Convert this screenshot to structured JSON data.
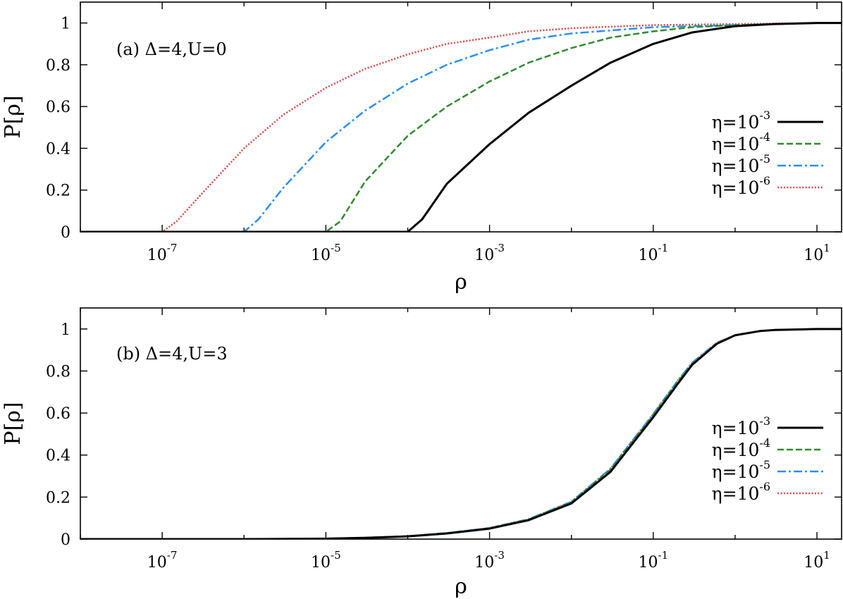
{
  "chart_data": [
    {
      "type": "line",
      "annotation": "(a) Δ=4,U=0",
      "xlabel": "ρ",
      "ylabel": "P[ρ]",
      "xscale": "log",
      "xlim": [
        1e-08,
        20
      ],
      "ylim": [
        0,
        1.1
      ],
      "x_ticks": [
        {
          "base": "10",
          "exp": "-7"
        },
        {
          "base": "10",
          "exp": "-5"
        },
        {
          "base": "10",
          "exp": "-3"
        },
        {
          "base": "10",
          "exp": "-1"
        },
        {
          "base": "10",
          "exp": "1"
        }
      ],
      "y_ticks": [
        "0",
        "0.2",
        "0.4",
        "0.6",
        "0.8",
        "1"
      ],
      "legend_position": "right",
      "series": [
        {
          "name": "η=10",
          "name_exp": "-3",
          "color": "#000000",
          "dash": "solid",
          "x": [
            1e-08,
            0.0001,
            0.00015,
            0.0003,
            0.001,
            0.003,
            0.01,
            0.03,
            0.1,
            0.3,
            1,
            3,
            10,
            20
          ],
          "y": [
            0,
            0,
            0.06,
            0.23,
            0.42,
            0.57,
            0.7,
            0.81,
            0.9,
            0.955,
            0.985,
            0.995,
            1.0,
            1.0
          ]
        },
        {
          "name": "η=10",
          "name_exp": "-4",
          "color": "#2e8b2e",
          "dash": "dashed",
          "x": [
            1e-08,
            1e-05,
            1.5e-05,
            3e-05,
            0.0001,
            0.0003,
            0.001,
            0.003,
            0.01,
            0.03,
            0.1,
            0.3,
            1,
            10,
            20
          ],
          "y": [
            0,
            0,
            0.05,
            0.24,
            0.46,
            0.6,
            0.72,
            0.81,
            0.88,
            0.93,
            0.96,
            0.98,
            0.99,
            1.0,
            1.0
          ]
        },
        {
          "name": "η=10",
          "name_exp": "-5",
          "color": "#2b8fef",
          "dash": "dashdot",
          "x": [
            1e-08,
            1e-06,
            1.5e-06,
            3e-06,
            1e-05,
            3e-05,
            0.0001,
            0.0003,
            0.001,
            0.003,
            0.01,
            0.1,
            1,
            10,
            20
          ],
          "y": [
            0,
            0,
            0.06,
            0.21,
            0.43,
            0.58,
            0.71,
            0.8,
            0.87,
            0.92,
            0.95,
            0.98,
            0.99,
            1.0,
            1.0
          ]
        },
        {
          "name": "η=10",
          "name_exp": "-6",
          "color": "#d9534f",
          "dash": "dotted",
          "x": [
            1e-08,
            1e-07,
            1.5e-07,
            3e-07,
            1e-06,
            3e-06,
            1e-05,
            3e-05,
            0.0001,
            0.0003,
            0.001,
            0.003,
            0.01,
            0.1,
            1,
            10,
            20
          ],
          "y": [
            0,
            0,
            0.05,
            0.18,
            0.4,
            0.56,
            0.69,
            0.78,
            0.85,
            0.9,
            0.93,
            0.96,
            0.975,
            0.99,
            0.995,
            1.0,
            1.0
          ]
        }
      ]
    },
    {
      "type": "line",
      "annotation": "(b) Δ=4,U=3",
      "xlabel": "ρ",
      "ylabel": "P[ρ]",
      "xscale": "log",
      "xlim": [
        1e-08,
        20
      ],
      "ylim": [
        0,
        1.1
      ],
      "x_ticks": [
        {
          "base": "10",
          "exp": "-7"
        },
        {
          "base": "10",
          "exp": "-5"
        },
        {
          "base": "10",
          "exp": "-3"
        },
        {
          "base": "10",
          "exp": "-1"
        },
        {
          "base": "10",
          "exp": "1"
        }
      ],
      "y_ticks": [
        "0",
        "0.2",
        "0.4",
        "0.6",
        "0.8",
        "1"
      ],
      "legend_position": "right",
      "series": [
        {
          "name": "η=10",
          "name_exp": "-3",
          "color": "#000000",
          "dash": "solid",
          "x": [
            1e-08,
            1e-06,
            1e-05,
            3e-05,
            0.0001,
            0.0003,
            0.001,
            0.003,
            0.01,
            0.03,
            0.06,
            0.1,
            0.2,
            0.3,
            0.6,
            1,
            2,
            3,
            10,
            20
          ],
          "y": [
            0,
            0,
            0.002,
            0.006,
            0.013,
            0.027,
            0.05,
            0.09,
            0.17,
            0.32,
            0.47,
            0.58,
            0.74,
            0.83,
            0.93,
            0.97,
            0.99,
            0.995,
            1.0,
            1.0
          ]
        },
        {
          "name": "η=10",
          "name_exp": "-4",
          "color": "#2e8b2e",
          "dash": "dashed",
          "x": [
            1e-08,
            1e-06,
            1e-05,
            3e-05,
            0.0001,
            0.0003,
            0.001,
            0.003,
            0.01,
            0.03,
            0.06,
            0.1,
            0.2,
            0.3,
            0.6,
            1,
            2,
            3,
            10,
            20
          ],
          "y": [
            0,
            0,
            0.002,
            0.006,
            0.014,
            0.028,
            0.052,
            0.093,
            0.175,
            0.33,
            0.48,
            0.59,
            0.75,
            0.835,
            0.93,
            0.97,
            0.99,
            0.995,
            1.0,
            1.0
          ]
        },
        {
          "name": "η=10",
          "name_exp": "-5",
          "color": "#2b8fef",
          "dash": "dashdot",
          "x": [
            1e-08,
            1e-06,
            1e-05,
            3e-05,
            0.0001,
            0.0003,
            0.001,
            0.003,
            0.01,
            0.03,
            0.06,
            0.1,
            0.2,
            0.3,
            0.6,
            1,
            2,
            3,
            10,
            20
          ],
          "y": [
            0,
            0,
            0.002,
            0.006,
            0.014,
            0.029,
            0.053,
            0.095,
            0.178,
            0.335,
            0.485,
            0.595,
            0.755,
            0.84,
            0.935,
            0.97,
            0.99,
            0.995,
            1.0,
            1.0
          ]
        },
        {
          "name": "η=10",
          "name_exp": "-6",
          "color": "#d9534f",
          "dash": "dotted",
          "x": [
            1e-08,
            1e-06,
            1e-05,
            3e-05,
            0.0001,
            0.0003,
            0.001,
            0.003,
            0.01,
            0.03,
            0.06,
            0.1,
            0.2,
            0.3,
            0.6,
            1,
            2,
            3,
            10,
            20
          ],
          "y": [
            0,
            0,
            0.002,
            0.006,
            0.014,
            0.029,
            0.053,
            0.095,
            0.178,
            0.335,
            0.485,
            0.595,
            0.755,
            0.84,
            0.935,
            0.97,
            0.99,
            0.995,
            1.0,
            1.0
          ]
        }
      ]
    }
  ]
}
